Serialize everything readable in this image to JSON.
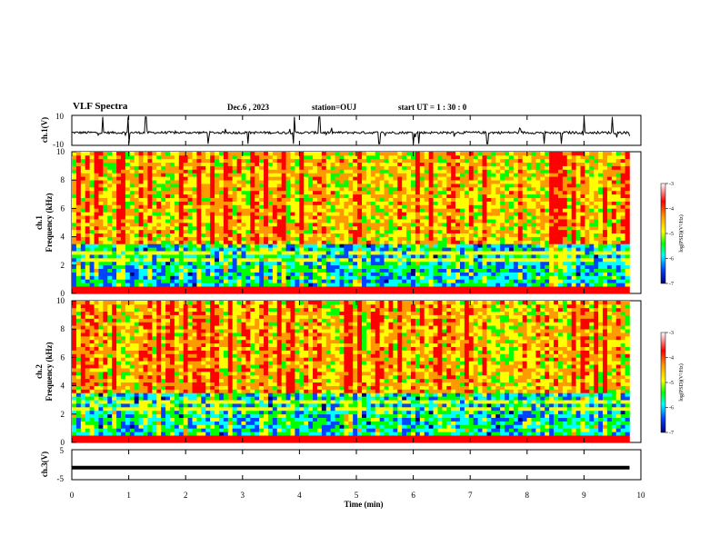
{
  "header": {
    "title": "VLF Spectra",
    "date": "Dec.6 , 2023",
    "station": "station=OUJ",
    "start_ut": "start UT = 1 : 30 : 0"
  },
  "panels": {
    "ch1_wave": {
      "ylabel": "ch.1(V)",
      "yticks": [
        "10",
        "-10"
      ]
    },
    "ch1_spec": {
      "ylabel_top": "ch.1",
      "ylabel": "Frequency (kHz)",
      "yticks": [
        "0",
        "2",
        "4",
        "6",
        "8",
        "10"
      ]
    },
    "ch2_spec": {
      "ylabel_top": "ch.2",
      "ylabel": "Frequency (kHz)",
      "yticks": [
        "0",
        "2",
        "4",
        "6",
        "8",
        "10"
      ]
    },
    "ch3_wave": {
      "ylabel": "ch.3(V)",
      "yticks": [
        "5",
        "-5"
      ]
    }
  },
  "colorbar": {
    "label": "log(PSD)(V²/Hz)",
    "ticks": [
      "-3",
      "-4",
      "-5",
      "-6",
      "-7"
    ],
    "colors": [
      "#ffffff",
      "#ff0000",
      "#ff8800",
      "#ffff00",
      "#00ff00",
      "#00ffff",
      "#0044ff",
      "#000080"
    ]
  },
  "chart_data": [
    {
      "type": "line",
      "panel": "ch.1 waveform",
      "ylabel": "ch.1(V)",
      "ylim": [
        -10,
        10
      ],
      "xlim": [
        0,
        10
      ],
      "baseline": -1.5,
      "spikes_x": [
        0.55,
        1.0,
        1.3,
        2.4,
        3.1,
        3.9,
        4.35,
        5.4,
        6.0,
        6.1,
        7.3,
        8.3,
        8.6,
        9.0,
        9.5
      ]
    },
    {
      "type": "heatmap",
      "panel": "ch.1 spectrogram",
      "ylabel": "Frequency (kHz)",
      "xlim": [
        0,
        9.8
      ],
      "ylim": [
        0,
        10
      ],
      "zlim": [
        -7,
        -3
      ],
      "zlabel": "log(PSD)(V²/Hz)"
    },
    {
      "type": "heatmap",
      "panel": "ch.2 spectrogram",
      "ylabel": "Frequency (kHz)",
      "xlim": [
        0,
        9.8
      ],
      "ylim": [
        0,
        10
      ],
      "zlim": [
        -7,
        -3
      ],
      "zlabel": "log(PSD)(V²/Hz)"
    },
    {
      "type": "line",
      "panel": "ch.3 waveform",
      "ylabel": "ch.3(V)",
      "ylim": [
        -5,
        5
      ],
      "xlim": [
        0,
        10
      ],
      "values": [
        -1,
        -1
      ]
    }
  ],
  "xaxis": {
    "label": "Time (min)",
    "ticks": [
      "0",
      "1",
      "2",
      "3",
      "4",
      "5",
      "6",
      "7",
      "8",
      "9",
      "10"
    ]
  }
}
